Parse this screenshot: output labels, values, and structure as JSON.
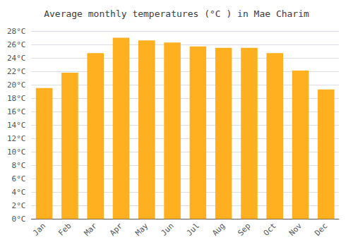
{
  "chart_data": {
    "type": "bar",
    "title": "Average monthly temperatures (°C ) in Mae Charim",
    "categories": [
      "Jan",
      "Feb",
      "Mar",
      "Apr",
      "May",
      "Jun",
      "Jul",
      "Aug",
      "Sep",
      "Oct",
      "Nov",
      "Dec"
    ],
    "values": [
      19.5,
      21.8,
      24.7,
      27.0,
      26.6,
      26.3,
      25.7,
      25.5,
      25.5,
      24.7,
      22.1,
      19.3
    ],
    "color": "#FFB020",
    "ylim": [
      0,
      28
    ],
    "yticks": [
      {
        "value": 0,
        "label": "0°C"
      },
      {
        "value": 2,
        "label": "2°C"
      },
      {
        "value": 4,
        "label": "4°C"
      },
      {
        "value": 6,
        "label": "6°C"
      },
      {
        "value": 8,
        "label": "8°C"
      },
      {
        "value": 10,
        "label": "10°C"
      },
      {
        "value": 12,
        "label": "12°C"
      },
      {
        "value": 14,
        "label": "14°C"
      },
      {
        "value": 16,
        "label": "16°C"
      },
      {
        "value": 18,
        "label": "18°C"
      },
      {
        "value": 20,
        "label": "20°C"
      },
      {
        "value": 22,
        "label": "22°C"
      },
      {
        "value": 24,
        "label": "24°C"
      },
      {
        "value": 26,
        "label": "26°C"
      },
      {
        "value": 28,
        "label": "28°C"
      }
    ],
    "grid": true
  }
}
